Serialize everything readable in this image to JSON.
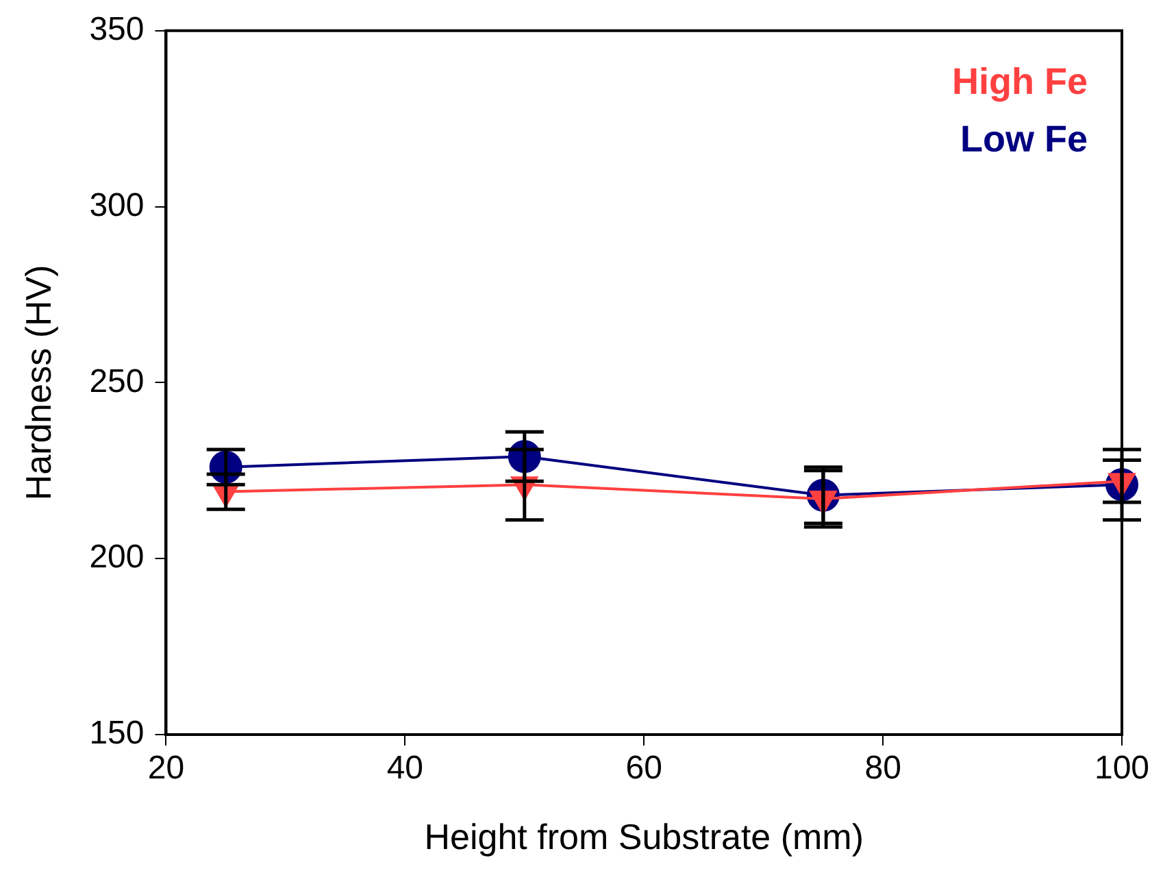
{
  "chart_data": {
    "type": "line",
    "xlabel": "Height from Substrate (mm)",
    "ylabel": "Hardness (HV)",
    "x": [
      25,
      50,
      75,
      100
    ],
    "series": [
      {
        "name": "High Fe",
        "color": "#ff4040",
        "marker": "triangle",
        "values": [
          219,
          221,
          217,
          222
        ],
        "errors": [
          5,
          10,
          8,
          6
        ]
      },
      {
        "name": "Low Fe",
        "color": "#000080",
        "marker": "circle",
        "values": [
          226,
          229,
          218,
          221
        ],
        "errors": [
          5,
          7,
          8,
          10
        ]
      }
    ],
    "xlim": [
      20,
      100
    ],
    "xticks": [
      20,
      40,
      60,
      80,
      100
    ],
    "ylim": [
      150,
      350
    ],
    "yticks": [
      150,
      200,
      250,
      300,
      350
    ],
    "grid": false,
    "legend": "top right"
  }
}
